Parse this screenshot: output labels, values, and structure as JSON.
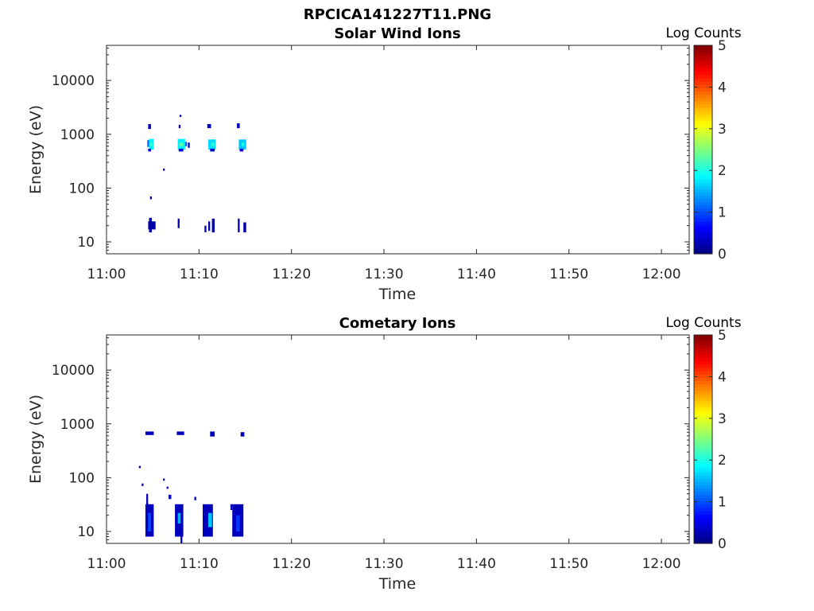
{
  "figure_title": "RPCICA141227T11.PNG",
  "chart_data": [
    {
      "type": "heatmap",
      "title": "Solar Wind Ions",
      "xlabel": "Time",
      "ylabel": "Energy (eV)",
      "x_ticks": [
        "11:00",
        "11:10",
        "11:20",
        "11:30",
        "11:40",
        "11:50",
        "12:00"
      ],
      "y_ticks": [
        "10",
        "100",
        "1000",
        "10000"
      ],
      "y_scale": "log",
      "ylim": [
        6,
        45000
      ],
      "xlim_minutes": [
        0,
        63
      ],
      "colorbar": {
        "label": "Log Counts",
        "ticks": [
          "0",
          "1",
          "2",
          "3",
          "4",
          "5"
        ],
        "range": [
          0,
          5
        ],
        "colormap": "jet"
      },
      "cells": [
        {
          "t": 4.4,
          "dt": 0.2,
          "e_lo": 580,
          "e_hi": 780,
          "v": 1.2
        },
        {
          "t": 4.6,
          "dt": 0.5,
          "e_lo": 520,
          "e_hi": 820,
          "v": 1.8
        },
        {
          "t": 4.7,
          "dt": 0.3,
          "e_lo": 600,
          "e_hi": 700,
          "v": 2.2
        },
        {
          "t": 4.5,
          "dt": 0.3,
          "e_lo": 480,
          "e_hi": 540,
          "v": 0.4
        },
        {
          "t": 4.5,
          "dt": 0.3,
          "e_lo": 1250,
          "e_hi": 1550,
          "v": 0.3
        },
        {
          "t": 4.7,
          "dt": 0.2,
          "e_lo": 62,
          "e_hi": 70,
          "v": 0.3
        },
        {
          "t": 4.5,
          "dt": 0.8,
          "e_lo": 17,
          "e_hi": 24,
          "v": 0.2
        },
        {
          "t": 4.6,
          "dt": 0.3,
          "e_lo": 15,
          "e_hi": 28,
          "v": 0.2
        },
        {
          "t": 7.7,
          "dt": 0.8,
          "e_lo": 520,
          "e_hi": 820,
          "v": 1.8
        },
        {
          "t": 7.9,
          "dt": 0.4,
          "e_lo": 600,
          "e_hi": 700,
          "v": 2.3
        },
        {
          "t": 8.5,
          "dt": 0.2,
          "e_lo": 600,
          "e_hi": 720,
          "v": 1.0
        },
        {
          "t": 8.8,
          "dt": 0.2,
          "e_lo": 560,
          "e_hi": 700,
          "v": 0.3
        },
        {
          "t": 7.8,
          "dt": 0.5,
          "e_lo": 480,
          "e_hi": 540,
          "v": 0.5
        },
        {
          "t": 7.8,
          "dt": 0.2,
          "e_lo": 1300,
          "e_hi": 1500,
          "v": 0.3
        },
        {
          "t": 7.9,
          "dt": 0.2,
          "e_lo": 2100,
          "e_hi": 2300,
          "v": 0.3
        },
        {
          "t": 7.7,
          "dt": 0.2,
          "e_lo": 18,
          "e_hi": 27,
          "v": 0.2
        },
        {
          "t": 6.1,
          "dt": 0.2,
          "e_lo": 210,
          "e_hi": 230,
          "v": 0.3
        },
        {
          "t": 11.0,
          "dt": 0.8,
          "e_lo": 520,
          "e_hi": 800,
          "v": 1.7
        },
        {
          "t": 11.3,
          "dt": 0.4,
          "e_lo": 600,
          "e_hi": 700,
          "v": 2.1
        },
        {
          "t": 11.2,
          "dt": 0.5,
          "e_lo": 480,
          "e_hi": 540,
          "v": 0.4
        },
        {
          "t": 10.9,
          "dt": 0.4,
          "e_lo": 1300,
          "e_hi": 1550,
          "v": 0.3
        },
        {
          "t": 10.6,
          "dt": 0.2,
          "e_lo": 15,
          "e_hi": 20,
          "v": 0.2
        },
        {
          "t": 11.0,
          "dt": 0.2,
          "e_lo": 16,
          "e_hi": 24,
          "v": 0.2
        },
        {
          "t": 11.4,
          "dt": 0.3,
          "e_lo": 15,
          "e_hi": 27,
          "v": 0.3
        },
        {
          "t": 14.3,
          "dt": 0.8,
          "e_lo": 520,
          "e_hi": 800,
          "v": 1.6
        },
        {
          "t": 14.6,
          "dt": 0.3,
          "e_lo": 600,
          "e_hi": 700,
          "v": 2.0
        },
        {
          "t": 14.4,
          "dt": 0.4,
          "e_lo": 480,
          "e_hi": 540,
          "v": 0.4
        },
        {
          "t": 14.1,
          "dt": 0.3,
          "e_lo": 1300,
          "e_hi": 1600,
          "v": 0.3
        },
        {
          "t": 14.2,
          "dt": 0.2,
          "e_lo": 15,
          "e_hi": 27,
          "v": 0.2
        },
        {
          "t": 14.8,
          "dt": 0.3,
          "e_lo": 15,
          "e_hi": 23,
          "v": 0.2
        }
      ]
    },
    {
      "type": "heatmap",
      "title": "Cometary Ions",
      "xlabel": "Time",
      "ylabel": "Energy (eV)",
      "x_ticks": [
        "11:00",
        "11:10",
        "11:20",
        "11:30",
        "11:40",
        "11:50",
        "12:00"
      ],
      "y_ticks": [
        "10",
        "100",
        "1000",
        "10000"
      ],
      "y_scale": "log",
      "ylim": [
        6,
        45000
      ],
      "xlim_minutes": [
        0,
        63
      ],
      "colorbar": {
        "label": "Log Counts",
        "ticks": [
          "0",
          "1",
          "2",
          "3",
          "4",
          "5"
        ],
        "range": [
          0,
          5
        ],
        "colormap": "jet"
      },
      "cells": [
        {
          "t": 4.2,
          "dt": 0.9,
          "e_lo": 620,
          "e_hi": 720,
          "v": 0.3
        },
        {
          "t": 7.6,
          "dt": 0.8,
          "e_lo": 620,
          "e_hi": 720,
          "v": 0.3
        },
        {
          "t": 11.2,
          "dt": 0.5,
          "e_lo": 580,
          "e_hi": 720,
          "v": 0.3
        },
        {
          "t": 14.5,
          "dt": 0.4,
          "e_lo": 580,
          "e_hi": 700,
          "v": 0.3
        },
        {
          "t": 3.5,
          "dt": 0.2,
          "e_lo": 150,
          "e_hi": 165,
          "v": 0.3
        },
        {
          "t": 3.8,
          "dt": 0.2,
          "e_lo": 70,
          "e_hi": 78,
          "v": 0.3
        },
        {
          "t": 6.1,
          "dt": 0.2,
          "e_lo": 88,
          "e_hi": 96,
          "v": 0.3
        },
        {
          "t": 6.5,
          "dt": 0.2,
          "e_lo": 62,
          "e_hi": 68,
          "v": 0.3
        },
        {
          "t": 6.7,
          "dt": 0.3,
          "e_lo": 40,
          "e_hi": 48,
          "v": 0.3
        },
        {
          "t": 9.5,
          "dt": 0.2,
          "e_lo": 38,
          "e_hi": 44,
          "v": 0.3
        },
        {
          "t": 4.3,
          "dt": 0.2,
          "e_lo": 25,
          "e_hi": 50,
          "v": 0.3
        },
        {
          "t": 4.2,
          "dt": 0.9,
          "e_lo": 8,
          "e_hi": 32,
          "v": 0.3
        },
        {
          "t": 4.5,
          "dt": 0.3,
          "e_lo": 10,
          "e_hi": 22,
          "v": 1.0
        },
        {
          "t": 7.4,
          "dt": 0.9,
          "e_lo": 8,
          "e_hi": 32,
          "v": 0.3
        },
        {
          "t": 7.7,
          "dt": 0.3,
          "e_lo": 14,
          "e_hi": 22,
          "v": 1.5
        },
        {
          "t": 8.0,
          "dt": 0.2,
          "e_lo": 6,
          "e_hi": 10,
          "v": 0.3
        },
        {
          "t": 10.4,
          "dt": 1.1,
          "e_lo": 8,
          "e_hi": 32,
          "v": 0.3
        },
        {
          "t": 11.0,
          "dt": 0.4,
          "e_lo": 12,
          "e_hi": 22,
          "v": 1.6
        },
        {
          "t": 13.6,
          "dt": 1.2,
          "e_lo": 8,
          "e_hi": 32,
          "v": 0.3
        },
        {
          "t": 14.0,
          "dt": 0.4,
          "e_lo": 10,
          "e_hi": 20,
          "v": 0.9
        },
        {
          "t": 13.4,
          "dt": 0.2,
          "e_lo": 25,
          "e_hi": 32,
          "v": 0.3
        }
      ]
    }
  ]
}
